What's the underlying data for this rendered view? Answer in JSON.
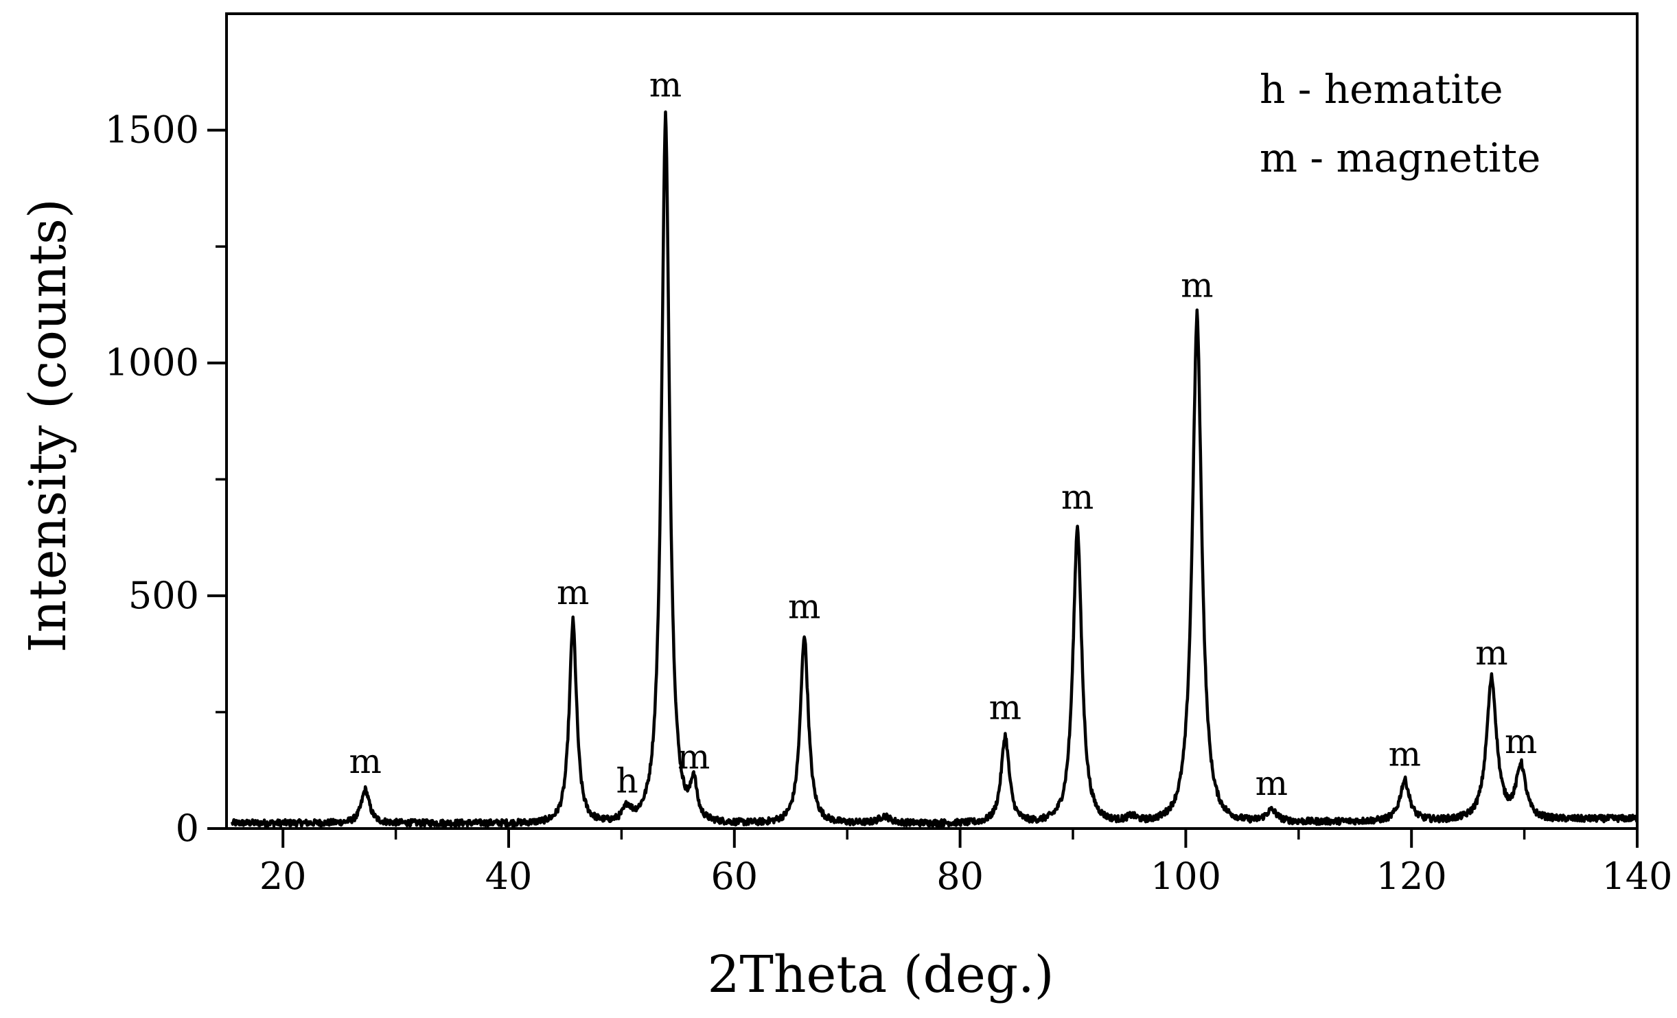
{
  "chart_data": {
    "type": "line",
    "title": "",
    "xlabel": "2Theta (deg.)",
    "ylabel": "Intensity (counts)",
    "xlim": [
      15,
      140
    ],
    "ylim": [
      0,
      1750
    ],
    "x_ticks_major": [
      20,
      40,
      60,
      80,
      100,
      120,
      140
    ],
    "x_ticks_minor": [
      30,
      50,
      70,
      90,
      110,
      130
    ],
    "y_ticks_major": [
      0,
      500,
      1000,
      1500
    ],
    "y_ticks_minor": [
      250,
      750,
      1250
    ],
    "x_tick_labels": [
      "20",
      "40",
      "60",
      "80",
      "100",
      "120",
      "140"
    ],
    "y_tick_labels": [
      "0",
      "500",
      "1000",
      "1500"
    ],
    "grid": false,
    "series": [
      {
        "color": "#000000",
        "baseline": 12,
        "peaks": [
          {
            "x": 27.3,
            "height": 72,
            "width": 0.6
          },
          {
            "x": 45.7,
            "height": 435,
            "width": 0.55
          },
          {
            "x": 50.5,
            "height": 30,
            "width": 0.6
          },
          {
            "x": 53.9,
            "height": 1525,
            "width": 0.6
          },
          {
            "x": 56.4,
            "height": 82,
            "width": 0.45
          },
          {
            "x": 66.2,
            "height": 405,
            "width": 0.6
          },
          {
            "x": 73.3,
            "height": 15,
            "width": 0.8
          },
          {
            "x": 84.0,
            "height": 188,
            "width": 0.6
          },
          {
            "x": 90.4,
            "height": 640,
            "width": 0.65
          },
          {
            "x": 95.2,
            "height": 12,
            "width": 0.8
          },
          {
            "x": 101.0,
            "height": 1095,
            "width": 0.7
          },
          {
            "x": 107.6,
            "height": 25,
            "width": 0.8
          },
          {
            "x": 119.4,
            "height": 88,
            "width": 0.7
          },
          {
            "x": 127.1,
            "height": 305,
            "width": 0.75
          },
          {
            "x": 129.7,
            "height": 115,
            "width": 0.7
          }
        ]
      }
    ],
    "annotations": [
      {
        "text": "m",
        "x": 27.3,
        "y": 72
      },
      {
        "text": "m",
        "x": 45.7,
        "y": 435
      },
      {
        "text": "h",
        "x": 50.5,
        "y": 30
      },
      {
        "text": "m",
        "x": 53.9,
        "y": 1525
      },
      {
        "text": "m",
        "x": 56.4,
        "y": 82
      },
      {
        "text": "m",
        "x": 66.2,
        "y": 405
      },
      {
        "text": "m",
        "x": 84.0,
        "y": 188
      },
      {
        "text": "m",
        "x": 90.4,
        "y": 640
      },
      {
        "text": "m",
        "x": 101.0,
        "y": 1095
      },
      {
        "text": "m",
        "x": 107.6,
        "y": 25
      },
      {
        "text": "m",
        "x": 119.4,
        "y": 88
      },
      {
        "text": "m",
        "x": 127.1,
        "y": 305
      },
      {
        "text": "m",
        "x": 129.7,
        "y": 115
      }
    ],
    "legend": {
      "placement": "top-right",
      "entries": [
        "h - hematite",
        "m - magnetite"
      ]
    }
  }
}
